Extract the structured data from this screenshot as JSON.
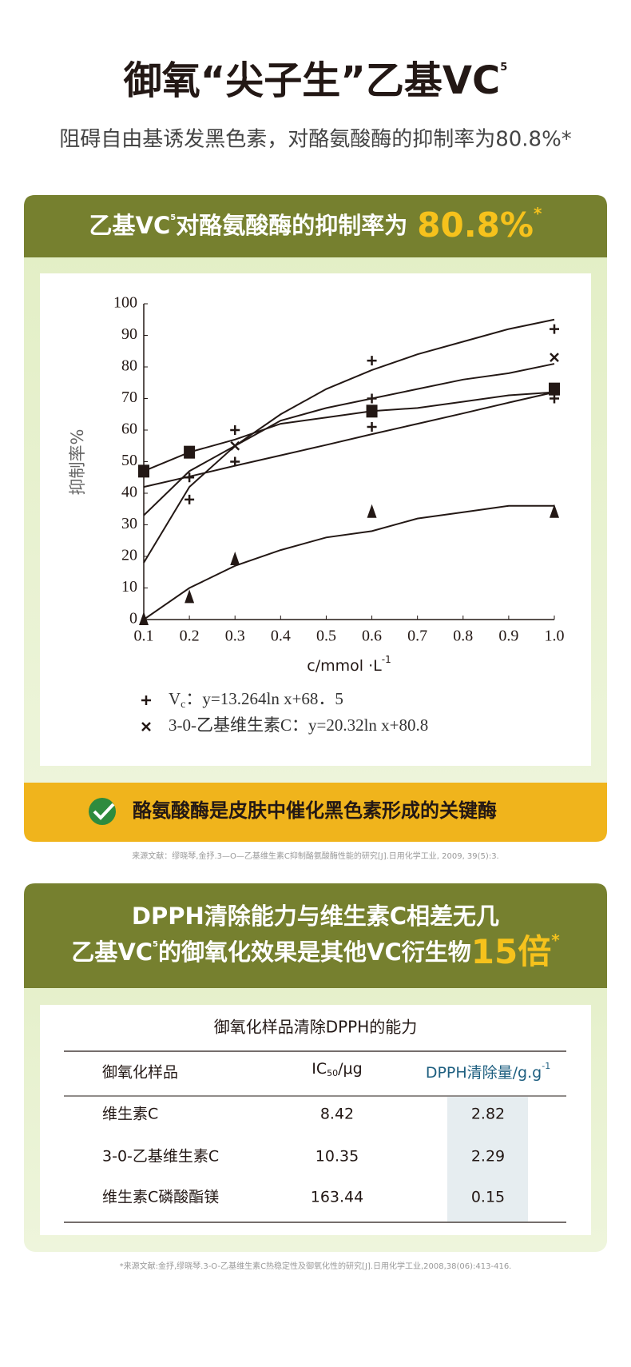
{
  "header": {
    "title": "御氧“尖子生”乙基VC",
    "title_sup": "5",
    "subtitle": "阻碍自由基诱发黑色素，对酪氨酸酶的抑制率为80.8%*"
  },
  "section1": {
    "heading": "乙基VC",
    "heading_sup": "5",
    "heading_rest": "对酪氨酸酶的抑制率为",
    "highlight": "80.8%",
    "highlight_sup": "*",
    "banner": "酪氨酸酶是皮肤中催化黑色素形成的关键酶",
    "reference": "来源文献：缪晓琴,金抒.3—O—乙基维生素C抑制酪氨酸酶性能的研究[J].日用化学工业, 2009, 39(5):3."
  },
  "chart_data": {
    "type": "scatter",
    "x_label": "c/mmol ·L",
    "x_label_sup": "-1",
    "y_label": "抑制率%",
    "xlim": [
      0.1,
      1.0
    ],
    "ylim": [
      0,
      100
    ],
    "xticks": [
      0.1,
      0.2,
      0.3,
      0.4,
      0.5,
      0.6,
      0.7,
      0.8,
      0.9,
      {
        "value": 1.0,
        "label": "1.0"
      }
    ],
    "yticks": [
      0,
      10,
      20,
      30,
      40,
      50,
      60,
      70,
      80,
      90,
      100
    ],
    "series": [
      {
        "name": "V",
        "name_sub": "c",
        "equation": "：y=13.264ln x+68．5",
        "marker": "plus",
        "color": "#231815",
        "x": [
          0.2,
          0.2,
          0.3,
          0.3,
          0.6,
          0.6,
          0.6,
          1.0,
          1.0
        ],
        "values": [
          45,
          38,
          60,
          50,
          82,
          70,
          61,
          92,
          70
        ]
      },
      {
        "name": "3-0-乙基维生素C",
        "equation": "：y=20.32ln x+80.8",
        "marker": "cross",
        "color": "#231815",
        "x": [
          0.3,
          1.0
        ],
        "values": [
          55,
          83
        ]
      },
      {
        "marker": "square",
        "color": "#231815",
        "x": [
          0.1,
          0.2,
          0.6,
          1.0
        ],
        "values": [
          47,
          53,
          66,
          73
        ]
      },
      {
        "marker": "triangle",
        "color": "#231815",
        "x": [
          0.1,
          0.2,
          0.3,
          0.6,
          1.0
        ],
        "values": [
          0,
          7,
          19,
          34,
          34
        ]
      }
    ],
    "line_x": [
      0.1,
      0.2,
      0.3,
      0.4,
      0.5,
      0.6,
      0.7,
      0.8,
      0.9,
      1.0
    ],
    "lines": [
      {
        "color": "#231815",
        "values": [
          18,
          42,
          55,
          65,
          73,
          79,
          84,
          88,
          92,
          95
        ]
      },
      {
        "color": "#231815",
        "values": [
          33,
          47,
          55,
          63,
          67,
          70,
          73,
          76,
          78,
          81
        ]
      },
      {
        "color": "#231815",
        "values": [
          47,
          53,
          57,
          62,
          64,
          66,
          67,
          69,
          71,
          72
        ]
      },
      {
        "color": "#231815",
        "values": [
          42,
          45.3,
          48.7,
          52,
          55.3,
          58.7,
          62,
          65.3,
          68.7,
          72
        ]
      },
      {
        "color": "#231815",
        "values": [
          0,
          10,
          17,
          22,
          26,
          28,
          32,
          34,
          36,
          36
        ]
      }
    ]
  },
  "section2": {
    "heading_line1": "DPPH清除能力与维生素C相差无几",
    "heading_line2": "乙基VC",
    "heading_line2_sup": "5",
    "heading_line2_rest": "的御氧化效果是其他VC衍生物",
    "highlight": "15倍",
    "highlight_sup": "*",
    "table": {
      "title": "御氧化样品清除DPPH的能力",
      "header": [
        {
          "text": "御氧化样品"
        },
        {
          "text": "IC",
          "sub": "50",
          "rest": "/μg"
        },
        {
          "text": "DPPH清除量/g.g",
          "sup": "-1"
        }
      ],
      "rows": [
        [
          "维生素C",
          "8.42",
          "2.82"
        ],
        [
          "3-0-乙基维生素C",
          "10.35",
          "2.29"
        ],
        [
          "维生素C磷酸酯镁",
          "163.44",
          "0.15"
        ]
      ]
    },
    "footnote": "*来源文献:金抒,缪晓琴.3-O-乙基维生素C热稳定性及御氧化性的研究[J].日用化学工业,2008,38(06):413-416."
  }
}
